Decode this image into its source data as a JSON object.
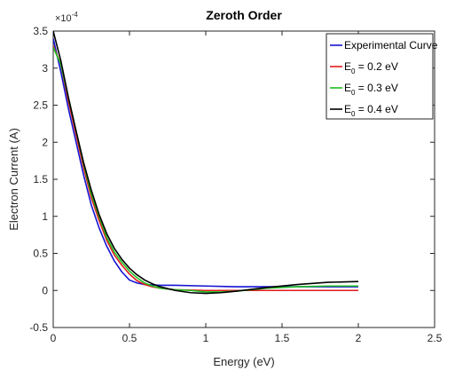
{
  "chart_data": {
    "type": "line",
    "title": "Zeroth Order",
    "xlabel": "Energy (eV)",
    "ylabel": "Electron Current (A)",
    "y_scale_label": "×10",
    "y_scale_exponent": "-4",
    "xlim": [
      0,
      2.5
    ],
    "ylim": [
      -0.5,
      3.5
    ],
    "xticks": [
      0,
      0.5,
      1,
      1.5,
      2,
      2.5
    ],
    "xtick_labels": [
      "0",
      "0.5",
      "1",
      "1.5",
      "2",
      "2.5"
    ],
    "yticks": [
      -0.5,
      0,
      0.5,
      1,
      1.5,
      2,
      2.5,
      3,
      3.5
    ],
    "ytick_labels": [
      "-0.5",
      "0",
      "0.5",
      "1",
      "1.5",
      "2",
      "2.5",
      "3",
      "3.5"
    ],
    "grid": false,
    "legend_position": "top-right",
    "series": [
      {
        "name": "Experimental Curve",
        "color": "#1414d2",
        "x": [
          0,
          0.05,
          0.1,
          0.15,
          0.2,
          0.25,
          0.3,
          0.35,
          0.4,
          0.45,
          0.5,
          0.55,
          0.6,
          0.7,
          0.8,
          1.0,
          1.2,
          1.4,
          1.6,
          1.8,
          2.0
        ],
        "y": [
          3.4,
          2.95,
          2.45,
          2.0,
          1.55,
          1.15,
          0.85,
          0.6,
          0.4,
          0.25,
          0.14,
          0.1,
          0.08,
          0.07,
          0.07,
          0.06,
          0.05,
          0.05,
          0.05,
          0.05,
          0.05
        ]
      },
      {
        "name": "E0 = 0.2 eV",
        "label_main": "E",
        "label_sub": "0",
        "label_rest": " = 0.2 eV",
        "color": "#e31a1c",
        "x": [
          0,
          0.05,
          0.1,
          0.15,
          0.2,
          0.25,
          0.3,
          0.35,
          0.4,
          0.45,
          0.5,
          0.55,
          0.6,
          0.65,
          0.7,
          0.8,
          1.0,
          1.2,
          1.4,
          1.6,
          1.8,
          2.0
        ],
        "y": [
          3.3,
          3.05,
          2.55,
          2.1,
          1.65,
          1.25,
          0.95,
          0.68,
          0.48,
          0.34,
          0.22,
          0.13,
          0.08,
          0.05,
          0.03,
          0.01,
          0.0,
          0.0,
          0.0,
          0.0,
          0.0,
          0.0
        ]
      },
      {
        "name": "E0 = 0.3 eV",
        "label_main": "E",
        "label_sub": "0",
        "label_rest": " = 0.3 eV",
        "color": "#1fbf1f",
        "x": [
          0,
          0.05,
          0.1,
          0.15,
          0.2,
          0.25,
          0.3,
          0.35,
          0.4,
          0.45,
          0.5,
          0.55,
          0.6,
          0.65,
          0.7,
          0.8,
          0.9,
          1.0,
          1.1,
          1.2,
          1.4,
          1.6,
          1.8,
          2.0
        ],
        "y": [
          3.28,
          3.05,
          2.6,
          2.15,
          1.7,
          1.3,
          1.0,
          0.72,
          0.52,
          0.38,
          0.26,
          0.17,
          0.1,
          0.06,
          0.03,
          0.01,
          0.0,
          -0.02,
          -0.02,
          -0.01,
          0.03,
          0.05,
          0.06,
          0.06
        ]
      },
      {
        "name": "E0 = 0.4 eV",
        "label_main": "E",
        "label_sub": "0",
        "label_rest": " = 0.4 eV",
        "color": "#000000",
        "x": [
          0,
          0.05,
          0.1,
          0.15,
          0.2,
          0.25,
          0.3,
          0.35,
          0.4,
          0.45,
          0.5,
          0.55,
          0.6,
          0.65,
          0.7,
          0.8,
          0.9,
          1.0,
          1.1,
          1.2,
          1.4,
          1.6,
          1.8,
          2.0
        ],
        "y": [
          3.5,
          3.1,
          2.6,
          2.15,
          1.72,
          1.35,
          1.03,
          0.77,
          0.57,
          0.42,
          0.3,
          0.21,
          0.14,
          0.09,
          0.05,
          0.0,
          -0.03,
          -0.04,
          -0.03,
          -0.01,
          0.04,
          0.08,
          0.11,
          0.12
        ]
      }
    ]
  }
}
